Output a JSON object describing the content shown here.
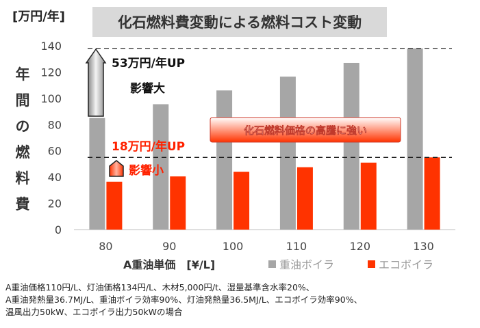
{
  "header": {
    "unit": "[万円/年]",
    "title": "化石燃料費変動による燃料コスト変動"
  },
  "ylabel_chars": [
    "年",
    "間",
    "の",
    "燃",
    "料",
    "費"
  ],
  "annotations": {
    "gray_diff": "53万円/年UP",
    "gray_impact": "影響大",
    "red_diff": "18万円/年UP",
    "red_impact": "影響小",
    "banner": "化石燃料価格の高騰に強い"
  },
  "chart_data": {
    "type": "bar",
    "categories": [
      "80",
      "90",
      "100",
      "110",
      "120",
      "130"
    ],
    "xlabel": "A重油単価　[¥/L]",
    "ylim": [
      0,
      140
    ],
    "yticks": [
      0,
      20,
      40,
      60,
      80,
      100,
      120,
      140
    ],
    "grid": false,
    "legend_placement": "bottom-right",
    "series": [
      {
        "name": "重油ボイラ",
        "color": "#a6a6a6",
        "values": [
          85,
          95.5,
          106,
          116.5,
          127,
          138
        ]
      },
      {
        "name": "エコボイラ",
        "color": "#ff3300",
        "values": [
          36.5,
          40.5,
          44,
          47.5,
          51,
          55
        ]
      }
    ],
    "reference_lines": [
      138,
      55
    ]
  },
  "footnote": [
    "A重油価格110円/L、灯油価格134円/L、木材5,000円/t、湿量基準含水率20%、",
    "A重油発熱量36.7MJ/L、重油ボイラ効率90%、灯油発熱量36.5MJ/L、エコボイラ効率90%、",
    "温風出力50kW、エコボイラ出力50kWの場合"
  ]
}
